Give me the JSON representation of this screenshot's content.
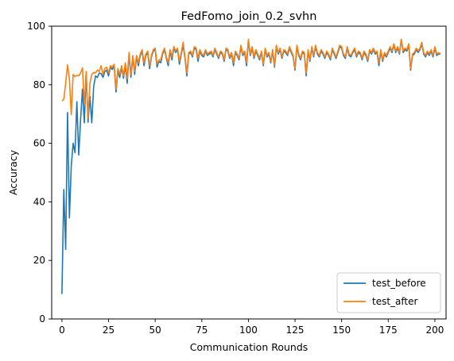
{
  "chart_data": {
    "type": "line",
    "title": "FedFomo_join_0.2_svhn",
    "xlabel": "Communication Rounds",
    "ylabel": "Accuracy",
    "xlim": [
      -5.5,
      206
    ],
    "ylim": [
      0,
      100
    ],
    "xticks": [
      0,
      25,
      50,
      75,
      100,
      125,
      150,
      175,
      200
    ],
    "yticks": [
      0,
      20,
      40,
      60,
      80,
      100
    ],
    "grid": false,
    "legend_position": "lower-right",
    "series": [
      {
        "name": "test_before",
        "color": "#1f77b4",
        "values": [
          8.5,
          44.2,
          23.8,
          70.5,
          34.5,
          52.2,
          60.0,
          56.8,
          74.2,
          56.0,
          68.0,
          78.5,
          67.0,
          84.3,
          67.2,
          76.0,
          67.0,
          79.2,
          83.0,
          82.5,
          84.0,
          83.8,
          82.5,
          84.5,
          85.0,
          83.0,
          86.0,
          85.2,
          86.5,
          77.5,
          84.8,
          82.5,
          86.0,
          82.2,
          86.5,
          80.5,
          90.5,
          82.5,
          89.5,
          83.5,
          89.5,
          86.5,
          90.0,
          91.5,
          86.5,
          90.0,
          91.0,
          85.5,
          89.5,
          91.5,
          92.0,
          86.0,
          88.0,
          87.5,
          90.5,
          92.0,
          89.0,
          86.5,
          91.5,
          88.5,
          92.5,
          91.0,
          92.0,
          87.0,
          90.5,
          93.5,
          89.0,
          83.0,
          90.5,
          91.0,
          89.5,
          92.5,
          92.0,
          88.0,
          91.5,
          90.0,
          89.5,
          91.5,
          90.0,
          90.5,
          91.0,
          89.5,
          92.0,
          90.5,
          89.0,
          91.0,
          90.5,
          88.0,
          92.0,
          91.5,
          89.0,
          90.5,
          86.5,
          91.0,
          90.0,
          88.5,
          93.0,
          90.0,
          91.0,
          86.5,
          95.0,
          90.0,
          92.5,
          89.0,
          91.5,
          90.0,
          88.5,
          91.0,
          86.5,
          92.0,
          89.5,
          90.5,
          87.5,
          91.5,
          86.0,
          93.0,
          90.5,
          92.0,
          89.0,
          91.5,
          91.0,
          90.0,
          92.5,
          91.0,
          89.5,
          85.0,
          93.0,
          90.0,
          88.5,
          91.0,
          90.5,
          83.0,
          91.5,
          88.0,
          92.5,
          89.5,
          93.0,
          90.5,
          89.5,
          91.5,
          90.5,
          89.0,
          91.0,
          90.0,
          88.5,
          92.0,
          90.5,
          89.0,
          91.0,
          93.0,
          92.5,
          90.0,
          89.0,
          92.5,
          90.0,
          89.5,
          91.0,
          92.0,
          89.5,
          91.0,
          90.5,
          88.5,
          91.0,
          90.0,
          88.0,
          91.5,
          90.5,
          92.0,
          90.5,
          91.0,
          86.5,
          91.5,
          88.0,
          90.5,
          89.5,
          91.0,
          92.5,
          91.0,
          93.5,
          91.0,
          92.5,
          90.5,
          95.5,
          91.0,
          92.0,
          91.5,
          93.5,
          85.0,
          90.0,
          90.5,
          92.0,
          91.0,
          92.0,
          94.0,
          90.5,
          89.5,
          91.0,
          90.0,
          91.5,
          89.5,
          92.5,
          90.0,
          90.5,
          90.5
        ]
      },
      {
        "name": "test_after",
        "color": "#ff7f0e",
        "values": [
          74.5,
          75.0,
          80.5,
          86.8,
          82.0,
          69.8,
          83.5,
          82.8,
          83.2,
          83.0,
          84.0,
          85.8,
          73.0,
          84.5,
          68.5,
          80.5,
          83.5,
          84.2,
          84.0,
          85.0,
          84.5,
          86.5,
          83.5,
          85.5,
          86.0,
          84.0,
          86.5,
          86.0,
          87.0,
          78.5,
          85.5,
          83.5,
          86.5,
          83.0,
          87.5,
          82.0,
          91.0,
          83.5,
          90.0,
          84.5,
          90.0,
          87.5,
          90.5,
          92.0,
          87.5,
          90.5,
          91.5,
          86.5,
          90.0,
          92.0,
          92.5,
          87.0,
          88.5,
          88.5,
          91.0,
          92.5,
          89.5,
          87.5,
          92.0,
          89.5,
          93.0,
          91.5,
          92.5,
          88.0,
          91.0,
          94.5,
          89.5,
          84.0,
          91.0,
          91.5,
          90.0,
          93.0,
          92.5,
          89.0,
          92.0,
          90.5,
          90.0,
          92.0,
          90.5,
          91.0,
          91.5,
          90.0,
          92.5,
          91.0,
          89.5,
          91.5,
          91.0,
          88.5,
          92.5,
          92.0,
          89.5,
          91.0,
          87.5,
          91.5,
          90.5,
          89.0,
          93.5,
          90.5,
          91.5,
          87.5,
          95.5,
          90.5,
          93.0,
          89.5,
          92.0,
          90.5,
          89.0,
          91.5,
          87.0,
          92.5,
          90.0,
          91.0,
          88.0,
          92.0,
          86.5,
          93.5,
          91.0,
          92.5,
          89.5,
          92.0,
          91.5,
          90.5,
          93.0,
          91.5,
          90.0,
          85.5,
          93.5,
          90.5,
          89.0,
          91.5,
          91.0,
          84.0,
          92.0,
          88.5,
          93.0,
          90.0,
          93.5,
          91.0,
          90.0,
          92.0,
          91.0,
          89.5,
          91.5,
          90.5,
          89.0,
          92.5,
          91.0,
          89.5,
          91.5,
          93.5,
          93.0,
          90.5,
          89.5,
          93.0,
          90.5,
          90.0,
          91.5,
          92.5,
          90.0,
          91.5,
          91.0,
          89.0,
          91.5,
          90.5,
          88.5,
          92.0,
          91.0,
          92.5,
          91.0,
          91.5,
          87.5,
          92.0,
          88.5,
          91.0,
          90.0,
          91.5,
          93.0,
          91.5,
          94.0,
          91.5,
          93.0,
          91.0,
          95.5,
          91.5,
          92.5,
          92.0,
          94.0,
          85.5,
          90.5,
          91.0,
          92.5,
          91.5,
          92.5,
          94.5,
          91.0,
          90.0,
          91.5,
          90.5,
          92.0,
          90.0,
          93.0,
          90.5,
          91.0,
          90.5
        ]
      }
    ]
  }
}
